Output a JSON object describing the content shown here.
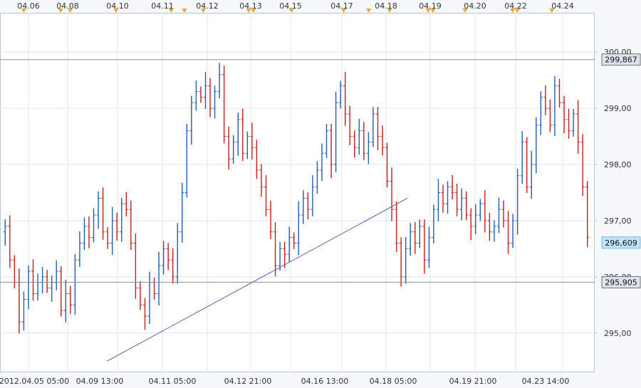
{
  "chart_data": {
    "type": "bar",
    "subtype": "ohlc-bars",
    "grid": true,
    "colors": {
      "up": "#1f5fb0",
      "down": "#c41e1e",
      "grid": "#dfe6ee",
      "frame": "#b8c4d2",
      "background": "#ffffff",
      "axis_bg": "#f5f7fa",
      "hline": "#8a8f9c",
      "trendline": "#3a3aa0",
      "event_marker": "#f5a623",
      "current_price_bg": "#bfe3f7",
      "level_label_bg": "#dde2ea"
    },
    "ylim": [
      294.3,
      300.7
    ],
    "y_ticks": [
      {
        "value": 295.0,
        "label": "295,00"
      },
      {
        "value": 296.0,
        "label": "296,00"
      },
      {
        "value": 297.0,
        "label": "297,00"
      },
      {
        "value": 298.0,
        "label": "298,00"
      },
      {
        "value": 299.0,
        "label": "299,00"
      },
      {
        "value": 300.0,
        "label": "300,00"
      }
    ],
    "top_date_labels": [
      "04.06",
      "04.08",
      "04.10",
      "04.11",
      "04.12",
      "04.13",
      "04.15",
      "04.17",
      "04.18",
      "04.19",
      "04.20",
      "04.22",
      "04.24"
    ],
    "bottom_time_labels": [
      "2012.04.05 05:00",
      "04.09 13:00",
      "04.11 05:00",
      "04.12 21:00",
      "04.16 13:00",
      "04.18 05:00",
      "04.19 21:00",
      "04.23 14:00"
    ],
    "horizontal_levels": [
      {
        "value": 299.867,
        "label": "299,867"
      },
      {
        "value": 295.905,
        "label": "295,905"
      }
    ],
    "current_price": {
      "value": 296.609,
      "label": "296,609"
    },
    "trendline": {
      "from_bar": 0.18,
      "from_value": 294.5,
      "to_bar": 0.685,
      "to_value": 297.4
    },
    "event_markers": [
      0.04,
      0.102,
      0.118,
      0.195,
      0.288,
      0.31,
      0.342,
      0.418,
      0.426,
      0.49,
      0.49,
      0.578,
      0.62,
      0.655,
      0.72,
      0.728,
      0.782,
      0.862,
      0.87,
      0.928
    ],
    "series": [
      {
        "values": [
          296.9,
          296.3,
          295.9,
          295.2,
          295.6,
          296.1,
          295.7,
          295.9,
          296.0,
          295.8,
          295.9,
          296.1,
          295.4,
          295.7,
          295.5,
          296.3,
          296.6,
          296.9,
          296.7,
          297.1,
          297.4,
          296.8,
          296.6,
          297.0,
          296.8,
          297.3,
          297.2,
          296.6,
          295.8,
          295.5,
          295.3,
          295.9,
          295.7,
          296.2,
          296.5,
          296.3,
          296.0,
          296.8,
          297.5,
          298.6,
          299.1,
          299.3,
          299.2,
          299.4,
          299.0,
          299.3,
          299.6,
          298.5,
          298.1,
          298.4,
          298.8,
          298.2,
          298.5,
          298.3,
          297.9,
          297.6,
          297.2,
          296.8,
          296.2,
          296.5,
          296.4,
          296.7,
          296.6,
          297.1,
          297.4,
          297.2,
          297.6,
          297.9,
          298.2,
          298.6,
          298.0,
          299.1,
          299.4,
          298.9,
          298.5,
          298.3,
          298.6,
          298.2,
          298.4,
          298.9,
          298.5,
          298.3,
          297.7,
          297.2,
          296.6,
          296.0,
          296.5,
          296.8,
          296.6,
          296.9,
          296.3,
          296.7,
          297.2,
          297.5,
          297.3,
          297.6,
          297.5,
          297.2,
          297.4,
          297.1,
          296.9,
          297.1,
          297.3,
          297.0,
          296.8,
          296.9,
          297.2,
          297.0,
          296.6,
          297.0,
          297.8,
          298.4,
          297.6,
          298.0,
          298.7,
          299.2,
          299.0,
          298.7,
          299.4,
          299.1,
          298.8,
          298.6,
          298.9,
          298.4,
          297.6,
          296.7
        ]
      }
    ]
  }
}
